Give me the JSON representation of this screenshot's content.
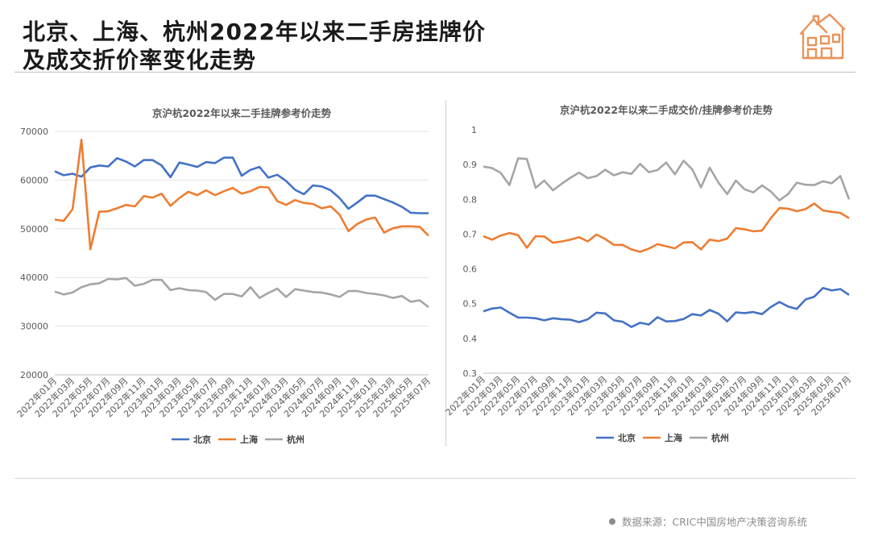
{
  "page": {
    "title_line1": "北京、上海、杭州2022年以来二手房挂牌价",
    "title_line2": "及成交折价率变化走势",
    "source": "数据来源：CRIC中国房地产决策咨询系统",
    "logo_icon": "house-icon",
    "accent": "#e8935a"
  },
  "chart_data": [
    {
      "type": "line",
      "title": "京沪杭2022年以来二手挂牌参考价走势",
      "xlabel": "",
      "ylabel": "",
      "ylim": [
        20000,
        70000
      ],
      "yticks": [
        "20000",
        "30000",
        "40000",
        "50000",
        "60000",
        "70000"
      ],
      "grid": true,
      "legend": "bottom",
      "x": [
        "2022年01月",
        "2022年02月",
        "2022年03月",
        "2022年04月",
        "2022年05月",
        "2022年06月",
        "2022年07月",
        "2022年08月",
        "2022年09月",
        "2022年10月",
        "2022年11月",
        "2022年12月",
        "2023年01月",
        "2023年02月",
        "2023年03月",
        "2023年04月",
        "2023年05月",
        "2023年06月",
        "2023年07月",
        "2023年08月",
        "2023年09月",
        "2023年10月",
        "2023年11月",
        "2023年12月",
        "2024年01月",
        "2024年02月",
        "2024年03月",
        "2024年04月",
        "2024年05月",
        "2024年06月",
        "2024年07月",
        "2024年08月",
        "2024年09月",
        "2024年10月",
        "2024年11月",
        "2024年12月",
        "2025年01月",
        "2025年02月",
        "2025年03月",
        "2025年04月",
        "2025年05月",
        "2025年06月",
        "2025年07月"
      ],
      "xtick_labels": [
        "2022年01月",
        "2022年03月",
        "2022年05月",
        "2022年07月",
        "2022年09月",
        "2022年11月",
        "2023年01月",
        "2023年03月",
        "2023年05月",
        "2023年07月",
        "2023年09月",
        "2023年11月",
        "2024年01月",
        "2024年03月",
        "2024年05月",
        "2024年07月",
        "2024年09月",
        "2024年11月",
        "2025年01月",
        "2025年03月",
        "2025年05月",
        "2025年07月"
      ],
      "series": [
        {
          "name": "北京",
          "color": "#4472c4",
          "values": [
            61800,
            61000,
            61300,
            60700,
            62600,
            63000,
            62800,
            64500,
            63800,
            62800,
            64100,
            64100,
            63000,
            60600,
            63600,
            63200,
            62700,
            63700,
            63500,
            64600,
            64600,
            60900,
            62100,
            62700,
            60500,
            61100,
            59800,
            58000,
            57100,
            58900,
            58700,
            57900,
            56300,
            54100,
            55400,
            56800,
            56800,
            56100,
            55400,
            54500,
            53300,
            53200,
            53200
          ]
        },
        {
          "name": "上海",
          "color": "#ed7d31",
          "values": [
            51900,
            51600,
            54000,
            68300,
            45800,
            53500,
            53600,
            54200,
            54900,
            54600,
            56700,
            56400,
            57200,
            54700,
            56300,
            57600,
            56900,
            57900,
            56900,
            57700,
            58400,
            57200,
            57700,
            58600,
            58500,
            55700,
            54900,
            55900,
            55300,
            55100,
            54200,
            54600,
            52900,
            49500,
            51000,
            51900,
            52300,
            49200,
            50100,
            50500,
            50500,
            50400,
            48600
          ]
        },
        {
          "name": "杭州",
          "color": "#a5a5a5",
          "values": [
            37100,
            36500,
            36900,
            38000,
            38600,
            38800,
            39700,
            39600,
            39900,
            38300,
            38700,
            39500,
            39500,
            37400,
            37800,
            37400,
            37300,
            37000,
            35400,
            36600,
            36600,
            36100,
            38000,
            35800,
            36800,
            37700,
            36000,
            37600,
            37300,
            37000,
            36900,
            36500,
            36000,
            37200,
            37200,
            36800,
            36600,
            36300,
            35800,
            36200,
            35000,
            35300,
            33900
          ]
        }
      ]
    },
    {
      "type": "line",
      "title": "京沪杭2022年以来二手成交价/挂牌参考价走势",
      "xlabel": "",
      "ylabel": "",
      "ylim": [
        0.3,
        1.0
      ],
      "yticks": [
        "0.3",
        "0.4",
        "0.5",
        "0.6",
        "0.7",
        "0.8",
        "0.9",
        "1"
      ],
      "grid": false,
      "legend": "bottom",
      "x": [
        "2022年01月",
        "2022年02月",
        "2022年03月",
        "2022年04月",
        "2022年05月",
        "2022年06月",
        "2022年07月",
        "2022年08月",
        "2022年09月",
        "2022年10月",
        "2022年11月",
        "2022年12月",
        "2023年01月",
        "2023年02月",
        "2023年03月",
        "2023年04月",
        "2023年05月",
        "2023年06月",
        "2023年07月",
        "2023年08月",
        "2023年09月",
        "2023年10月",
        "2023年11月",
        "2023年12月",
        "2024年01月",
        "2024年02月",
        "2024年03月",
        "2024年04月",
        "2024年05月",
        "2024年06月",
        "2024年07月",
        "2024年08月",
        "2024年09月",
        "2024年10月",
        "2024年11月",
        "2024年12月",
        "2025年01月",
        "2025年02月",
        "2025年03月",
        "2025年04月",
        "2025年05月",
        "2025年06月",
        "2025年07月"
      ],
      "xtick_labels": [
        "2022年01月",
        "2022年03月",
        "2022年05月",
        "2022年07月",
        "2022年09月",
        "2022年11月",
        "2023年01月",
        "2023年03月",
        "2023年05月",
        "2023年07月",
        "2023年09月",
        "2023年11月",
        "2024年01月",
        "2024年03月",
        "2024年05月",
        "2024年07月",
        "2024年09月",
        "2024年11月",
        "2025年01月",
        "2025年03月",
        "2025年05月",
        "2025年07月"
      ],
      "series": [
        {
          "name": "北京",
          "color": "#4472c4",
          "values": [
            0.478,
            0.486,
            0.489,
            0.474,
            0.46,
            0.46,
            0.458,
            0.452,
            0.458,
            0.455,
            0.454,
            0.447,
            0.455,
            0.474,
            0.472,
            0.452,
            0.448,
            0.433,
            0.445,
            0.44,
            0.461,
            0.449,
            0.45,
            0.456,
            0.47,
            0.466,
            0.482,
            0.471,
            0.449,
            0.475,
            0.473,
            0.476,
            0.47,
            0.49,
            0.505,
            0.492,
            0.485,
            0.512,
            0.52,
            0.545,
            0.538,
            0.542,
            0.525
          ]
        },
        {
          "name": "上海",
          "color": "#ed7d31",
          "values": [
            0.694,
            0.684,
            0.696,
            0.703,
            0.697,
            0.661,
            0.694,
            0.693,
            0.675,
            0.679,
            0.684,
            0.691,
            0.679,
            0.699,
            0.686,
            0.669,
            0.669,
            0.656,
            0.649,
            0.658,
            0.671,
            0.665,
            0.659,
            0.676,
            0.677,
            0.656,
            0.684,
            0.68,
            0.687,
            0.717,
            0.714,
            0.708,
            0.71,
            0.745,
            0.775,
            0.773,
            0.766,
            0.772,
            0.788,
            0.768,
            0.764,
            0.761,
            0.746
          ]
        },
        {
          "name": "杭州",
          "color": "#a5a5a5",
          "values": [
            0.894,
            0.89,
            0.876,
            0.841,
            0.918,
            0.916,
            0.833,
            0.854,
            0.826,
            0.845,
            0.862,
            0.877,
            0.861,
            0.867,
            0.885,
            0.869,
            0.878,
            0.873,
            0.902,
            0.878,
            0.884,
            0.906,
            0.872,
            0.911,
            0.886,
            0.834,
            0.891,
            0.848,
            0.815,
            0.854,
            0.829,
            0.82,
            0.84,
            0.823,
            0.797,
            0.815,
            0.848,
            0.842,
            0.841,
            0.852,
            0.846,
            0.867,
            0.8
          ]
        }
      ]
    }
  ]
}
